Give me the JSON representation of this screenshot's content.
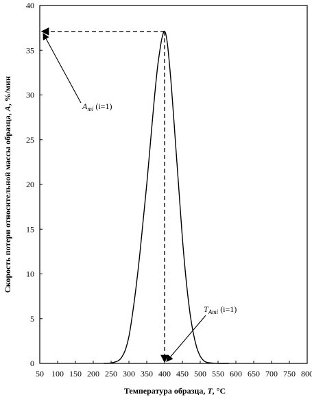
{
  "chart_data": {
    "type": "line",
    "title": "",
    "xlabel": "Температура образца,",
    "xlabel_var": "T",
    "xlabel_unit": ", °C",
    "ylabel": "Скорость потери относительной массы образца,",
    "ylabel_var": "A",
    "ylabel_unit": ", %/мин",
    "xlim": [
      50,
      800
    ],
    "ylim": [
      0,
      40
    ],
    "xticks": [
      50,
      100,
      150,
      200,
      250,
      300,
      350,
      400,
      450,
      500,
      550,
      600,
      650,
      700,
      750,
      800
    ],
    "yticks": [
      0,
      5,
      10,
      15,
      20,
      25,
      30,
      35,
      40
    ],
    "grid": false,
    "series": [
      {
        "x": [
          230,
          250,
          270,
          280,
          290,
          300,
          310,
          320,
          330,
          340,
          350,
          360,
          370,
          380,
          390,
          395,
          398,
          400,
          402,
          405,
          410,
          420,
          430,
          440,
          450,
          460,
          470,
          480,
          490,
          500,
          510,
          520,
          540,
          560,
          580
        ],
        "y": [
          0,
          0.05,
          0.3,
          0.7,
          1.5,
          3.0,
          5.5,
          8.5,
          12.0,
          16.0,
          20.0,
          24.5,
          29.0,
          33.0,
          35.8,
          36.7,
          37.1,
          37.1,
          37.0,
          36.5,
          35.0,
          30.5,
          25.0,
          19.5,
          14.0,
          9.5,
          6.0,
          3.5,
          1.8,
          0.8,
          0.3,
          0.1,
          0.02,
          0,
          0
        ]
      }
    ],
    "annotations": [
      {
        "label": "A",
        "sub": "mi",
        "suffix": " (i=1)",
        "peak_x": 400,
        "peak_y": 37.1
      },
      {
        "label": "T",
        "sub": "Ami",
        "suffix": " (i=1)",
        "peak_x": 400,
        "peak_y": 37.1
      }
    ]
  }
}
